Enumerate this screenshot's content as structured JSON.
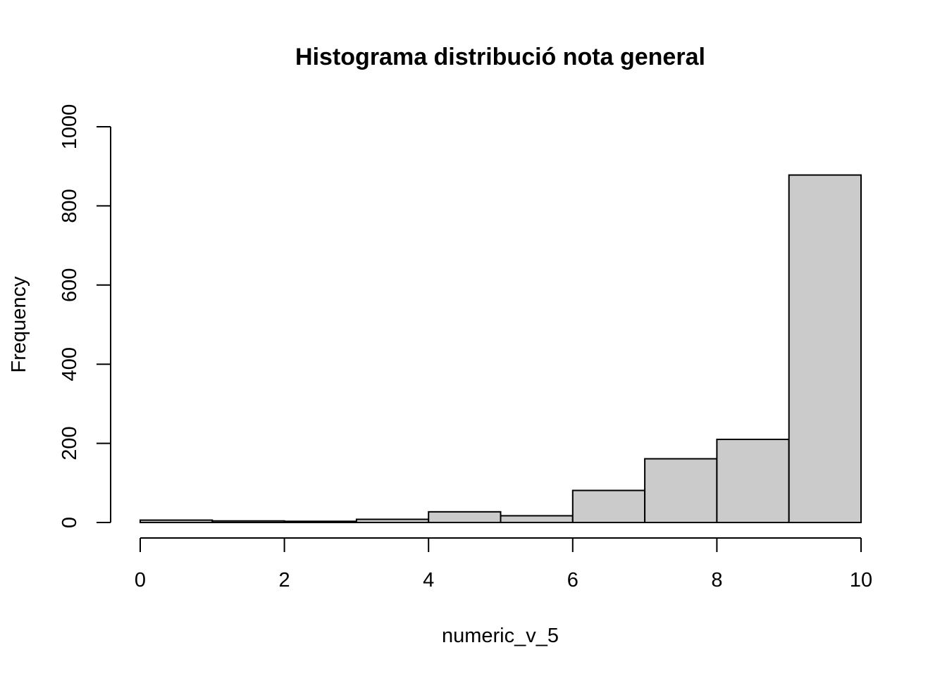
{
  "chart_data": {
    "type": "bar",
    "title": "Histograma distribució nota general",
    "xlabel": "numeric_v_5",
    "ylabel": "Frequency",
    "bins": [
      {
        "from": 0,
        "to": 1,
        "count": 6
      },
      {
        "from": 1,
        "to": 2,
        "count": 4
      },
      {
        "from": 2,
        "to": 3,
        "count": 3
      },
      {
        "from": 3,
        "to": 4,
        "count": 8
      },
      {
        "from": 4,
        "to": 5,
        "count": 27
      },
      {
        "from": 5,
        "to": 6,
        "count": 17
      },
      {
        "from": 6,
        "to": 7,
        "count": 81
      },
      {
        "from": 7,
        "to": 8,
        "count": 161
      },
      {
        "from": 8,
        "to": 9,
        "count": 210
      },
      {
        "from": 9,
        "to": 10,
        "count": 878
      }
    ],
    "xlim": [
      0,
      10
    ],
    "ylim": [
      0,
      1000
    ],
    "x_ticks": [
      "0",
      "2",
      "4",
      "6",
      "8",
      "10"
    ],
    "y_ticks": [
      "0",
      "200",
      "400",
      "600",
      "800",
      "1000"
    ],
    "grid": false,
    "bar_color": "#cbcbcb",
    "edge_color": "#000000"
  }
}
